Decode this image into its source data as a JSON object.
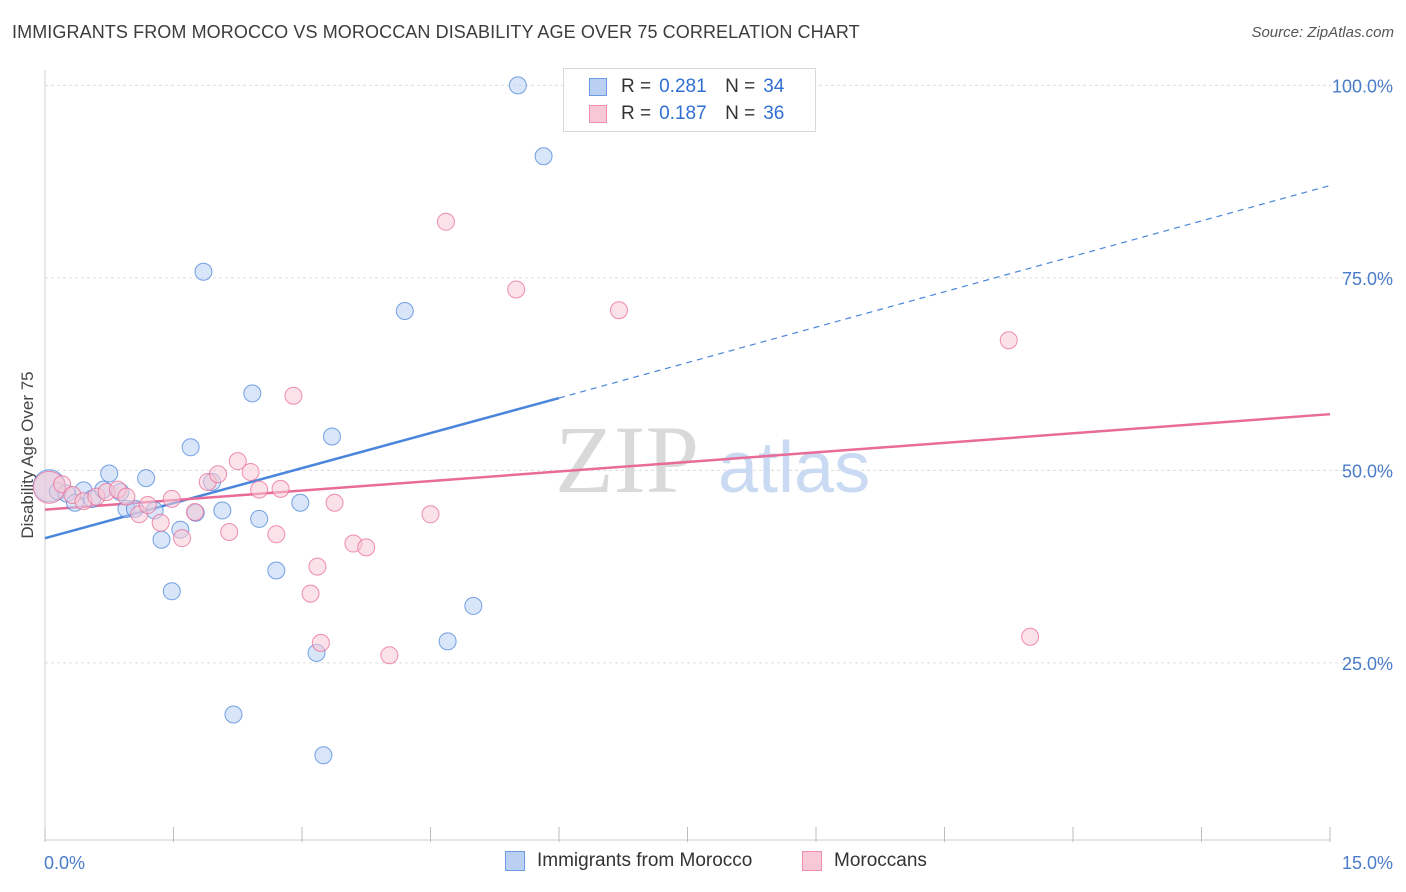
{
  "header": {
    "title": "IMMIGRANTS FROM MOROCCO VS MOROCCAN DISABILITY AGE OVER 75 CORRELATION CHART",
    "source": "Source: ZipAtlas.com"
  },
  "watermark": {
    "zip": "ZIP",
    "atlas": "atlas"
  },
  "legend": {
    "rows": [
      {
        "r_label": "R =",
        "r_value": "0.281",
        "n_label": "N =",
        "n_value": "34",
        "color": "#6d9be0",
        "fill": "#b9d0f2"
      },
      {
        "r_label": "R =",
        "r_value": "0.187",
        "n_label": "N =",
        "n_value": "36",
        "color": "#ef8fad",
        "fill": "#f7c8d6"
      }
    ]
  },
  "bottom_legend": {
    "items": [
      {
        "label": "Immigrants from Morocco",
        "color": "#6d9be0",
        "fill": "#b9d0f2"
      },
      {
        "label": "Moroccans",
        "color": "#ef8fad",
        "fill": "#f7c8d6"
      }
    ]
  },
  "chart_data": {
    "type": "scatter",
    "title": "IMMIGRANTS FROM MOROCCO VS MOROCCAN DISABILITY AGE OVER 75 CORRELATION CHART",
    "xlabel": "",
    "ylabel": "Disability Age Over 75",
    "xlim": [
      0,
      15
    ],
    "ylim": [
      2,
      102
    ],
    "x_tick_labels": [
      "0.0%",
      "15.0%"
    ],
    "y_ticks": [
      25,
      50,
      75,
      100
    ],
    "y_tick_labels": [
      "25.0%",
      "50.0%",
      "75.0%",
      "100.0%"
    ],
    "grid": true,
    "legend_position": "top-center",
    "series": [
      {
        "name": "Immigrants from Morocco",
        "color": "#4a86dc",
        "fill": "#b9d0f2",
        "r": 0.281,
        "n": 34,
        "trend": {
          "x0": 0,
          "y0": 41.2,
          "x1": 6,
          "y1": 59.4,
          "dashed_to_x": 15,
          "dashed_to_y": 87.0
        },
        "points": [
          {
            "x": 0.05,
            "y": 48.0,
            "size": "large"
          },
          {
            "x": 0.15,
            "y": 47.3
          },
          {
            "x": 0.25,
            "y": 47.0
          },
          {
            "x": 0.35,
            "y": 45.8
          },
          {
            "x": 0.45,
            "y": 47.4
          },
          {
            "x": 0.55,
            "y": 46.3
          },
          {
            "x": 0.68,
            "y": 47.5
          },
          {
            "x": 0.75,
            "y": 49.6
          },
          {
            "x": 0.88,
            "y": 47.2
          },
          {
            "x": 0.95,
            "y": 45.0
          },
          {
            "x": 1.05,
            "y": 45.0
          },
          {
            "x": 1.18,
            "y": 49.0
          },
          {
            "x": 1.28,
            "y": 44.8
          },
          {
            "x": 1.36,
            "y": 41.0
          },
          {
            "x": 1.48,
            "y": 34.3
          },
          {
            "x": 1.58,
            "y": 42.3
          },
          {
            "x": 1.7,
            "y": 53.0
          },
          {
            "x": 1.76,
            "y": 44.5
          },
          {
            "x": 1.85,
            "y": 75.8
          },
          {
            "x": 1.95,
            "y": 48.5
          },
          {
            "x": 2.07,
            "y": 44.8
          },
          {
            "x": 2.2,
            "y": 18.3
          },
          {
            "x": 2.42,
            "y": 60.0
          },
          {
            "x": 2.5,
            "y": 43.7
          },
          {
            "x": 2.7,
            "y": 37.0
          },
          {
            "x": 2.98,
            "y": 45.8
          },
          {
            "x": 3.17,
            "y": 26.3
          },
          {
            "x": 3.25,
            "y": 13.0
          },
          {
            "x": 3.35,
            "y": 54.4
          },
          {
            "x": 4.2,
            "y": 70.7
          },
          {
            "x": 4.7,
            "y": 27.8
          },
          {
            "x": 5.0,
            "y": 32.4
          },
          {
            "x": 5.52,
            "y": 100.0
          },
          {
            "x": 5.82,
            "y": 90.8
          }
        ]
      },
      {
        "name": "Moroccans",
        "color": "#e96b97",
        "fill": "#f7c8d6",
        "r": 0.187,
        "n": 36,
        "trend": {
          "x0": 0,
          "y0": 44.9,
          "x1": 15,
          "y1": 57.3
        },
        "points": [
          {
            "x": 0.05,
            "y": 47.8,
            "size": "large"
          },
          {
            "x": 0.2,
            "y": 48.2
          },
          {
            "x": 0.32,
            "y": 46.8
          },
          {
            "x": 0.45,
            "y": 46.0
          },
          {
            "x": 0.6,
            "y": 46.6
          },
          {
            "x": 0.72,
            "y": 47.2
          },
          {
            "x": 0.85,
            "y": 47.5
          },
          {
            "x": 0.95,
            "y": 46.6
          },
          {
            "x": 1.1,
            "y": 44.3
          },
          {
            "x": 1.2,
            "y": 45.5
          },
          {
            "x": 1.35,
            "y": 43.2
          },
          {
            "x": 1.48,
            "y": 46.3
          },
          {
            "x": 1.6,
            "y": 41.2
          },
          {
            "x": 1.75,
            "y": 44.6
          },
          {
            "x": 1.9,
            "y": 48.5
          },
          {
            "x": 2.02,
            "y": 49.5
          },
          {
            "x": 2.15,
            "y": 42.0
          },
          {
            "x": 2.25,
            "y": 51.2
          },
          {
            "x": 2.4,
            "y": 49.8
          },
          {
            "x": 2.5,
            "y": 47.5
          },
          {
            "x": 2.7,
            "y": 41.7
          },
          {
            "x": 2.75,
            "y": 47.6
          },
          {
            "x": 2.9,
            "y": 59.7
          },
          {
            "x": 3.1,
            "y": 34.0
          },
          {
            "x": 3.18,
            "y": 37.5
          },
          {
            "x": 3.22,
            "y": 27.6
          },
          {
            "x": 3.38,
            "y": 45.8
          },
          {
            "x": 3.6,
            "y": 40.5
          },
          {
            "x": 3.75,
            "y": 40.0
          },
          {
            "x": 4.02,
            "y": 26.0
          },
          {
            "x": 4.5,
            "y": 44.3
          },
          {
            "x": 4.68,
            "y": 82.3
          },
          {
            "x": 5.5,
            "y": 73.5
          },
          {
            "x": 6.7,
            "y": 70.8
          },
          {
            "x": 11.25,
            "y": 66.9
          },
          {
            "x": 11.5,
            "y": 28.4
          }
        ]
      }
    ]
  }
}
